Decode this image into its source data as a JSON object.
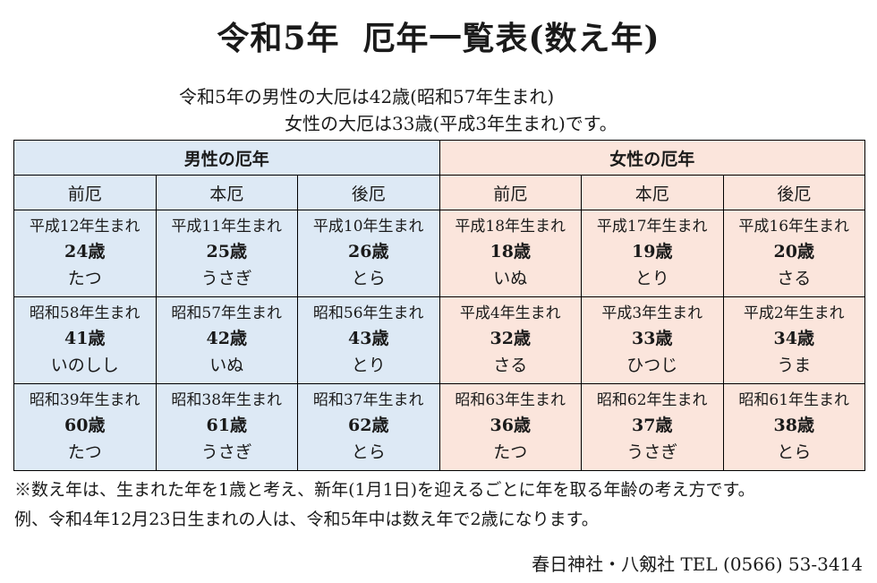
{
  "title": {
    "main": "令和5年",
    "sub": "厄年一覧表(数え年)"
  },
  "intro": {
    "line1": "令和5年の男性の大厄は42歳(昭和57年生まれ)",
    "line2": "女性の大厄は33歳(平成3年生まれ)です。"
  },
  "colors": {
    "male_bg": "#dde9f5",
    "female_bg": "#fbe5dc"
  },
  "table": {
    "male_header": "男性の厄年",
    "female_header": "女性の厄年",
    "positions": [
      "前厄",
      "本厄",
      "後厄",
      "前厄",
      "本厄",
      "後厄"
    ],
    "rows": [
      [
        {
          "birth": "平成12年生まれ",
          "age": "24歳",
          "zodiac": "たつ"
        },
        {
          "birth": "平成11年生まれ",
          "age": "25歳",
          "zodiac": "うさぎ"
        },
        {
          "birth": "平成10年生まれ",
          "age": "26歳",
          "zodiac": "とら"
        },
        {
          "birth": "平成18年生まれ",
          "age": "18歳",
          "zodiac": "いぬ"
        },
        {
          "birth": "平成17年生まれ",
          "age": "19歳",
          "zodiac": "とり"
        },
        {
          "birth": "平成16年生まれ",
          "age": "20歳",
          "zodiac": "さる"
        }
      ],
      [
        {
          "birth": "昭和58年生まれ",
          "age": "41歳",
          "zodiac": "いのしし"
        },
        {
          "birth": "昭和57年生まれ",
          "age": "42歳",
          "zodiac": "いぬ"
        },
        {
          "birth": "昭和56年生まれ",
          "age": "43歳",
          "zodiac": "とり"
        },
        {
          "birth": "平成4年生まれ",
          "age": "32歳",
          "zodiac": "さる"
        },
        {
          "birth": "平成3年生まれ",
          "age": "33歳",
          "zodiac": "ひつじ"
        },
        {
          "birth": "平成2年生まれ",
          "age": "34歳",
          "zodiac": "うま"
        }
      ],
      [
        {
          "birth": "昭和39年生まれ",
          "age": "60歳",
          "zodiac": "たつ"
        },
        {
          "birth": "昭和38年生まれ",
          "age": "61歳",
          "zodiac": "うさぎ"
        },
        {
          "birth": "昭和37年生まれ",
          "age": "62歳",
          "zodiac": "とら"
        },
        {
          "birth": "昭和63年生まれ",
          "age": "36歳",
          "zodiac": "たつ"
        },
        {
          "birth": "昭和62年生まれ",
          "age": "37歳",
          "zodiac": "うさぎ"
        },
        {
          "birth": "昭和61年生まれ",
          "age": "38歳",
          "zodiac": "とら"
        }
      ]
    ]
  },
  "notes": {
    "line1": "※数え年は、生まれた年を1歳と考え、新年(1月1日)を迎えるごとに年を取る年齢の考え方です。",
    "line2": "例、令和4年12月23日生まれの人は、令和5年中は数え年で2歳になります。"
  },
  "footer": {
    "contact": "春日神社・八剱社 TEL (0566) 53-3414"
  }
}
